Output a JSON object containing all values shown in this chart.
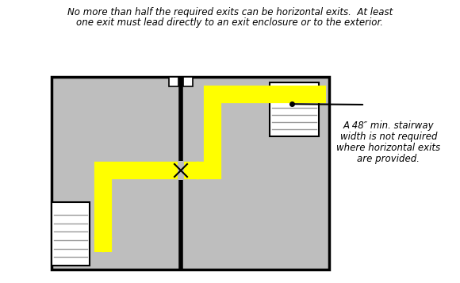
{
  "bg_color": "#ffffff",
  "floor_color": "#bebebe",
  "wall_color": "#000000",
  "stair_color": "#ffffff",
  "arrow_color": "#ffff00",
  "title_line1": "No more than half the required exits can be horizontal exits.  At least",
  "title_line2": "one exit must lead directly to an exit enclosure or to the exterior.",
  "note_text": "A 48″ min. stairway\nwidth is not required\nwhere horizontal exits\nare provided.",
  "title_fontsize": 8.5,
  "note_fontsize": 8.5
}
